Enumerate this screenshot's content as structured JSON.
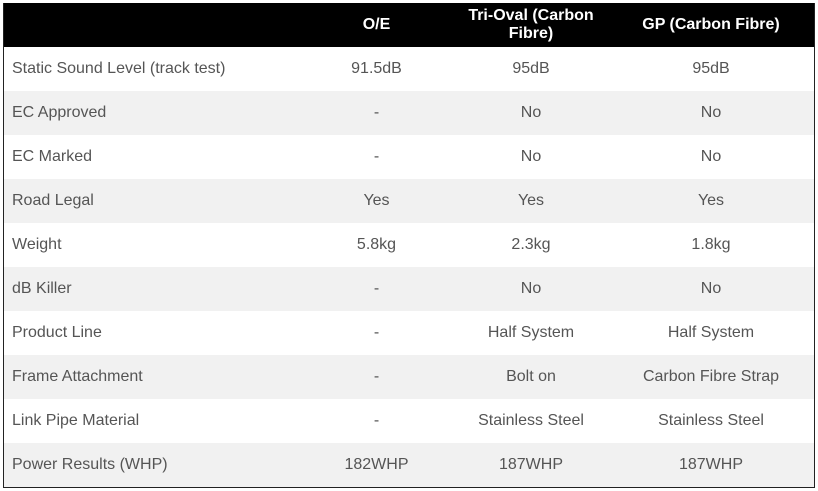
{
  "headers": [
    "",
    "O/E",
    "Tri-Oval (Carbon Fibre)",
    "GP (Carbon Fibre)"
  ],
  "rows": [
    [
      "Static Sound Level (track test)",
      "91.5dB",
      "95dB",
      "95dB"
    ],
    [
      "EC Approved",
      "-",
      "No",
      "No"
    ],
    [
      "EC Marked",
      "-",
      "No",
      "No"
    ],
    [
      "Road Legal",
      "Yes",
      "Yes",
      "Yes"
    ],
    [
      "Weight",
      "5.8kg",
      "2.3kg",
      "1.8kg"
    ],
    [
      "dB Killer",
      "-",
      "No",
      "No"
    ],
    [
      "Product Line",
      "-",
      "Half System",
      "Half System"
    ],
    [
      "Frame Attachment",
      "-",
      "Bolt on",
      "Carbon Fibre Strap"
    ],
    [
      "Link Pipe Material",
      "-",
      "Stainless Steel",
      "Stainless Steel"
    ],
    [
      "Power Results (WHP)",
      "182WHP",
      "187WHP",
      "187WHP"
    ]
  ]
}
